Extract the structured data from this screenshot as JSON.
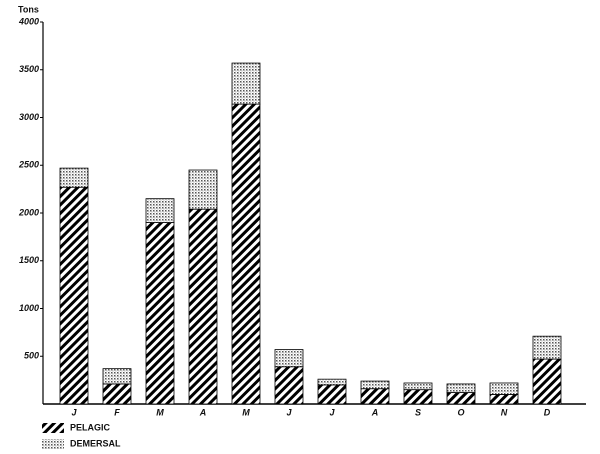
{
  "chart_data": {
    "type": "stacked_bar",
    "y_label": "Tons",
    "categories": [
      "J",
      "F",
      "M",
      "A",
      "M",
      "J",
      "J",
      "A",
      "S",
      "O",
      "N",
      "D"
    ],
    "series": [
      {
        "name": "PELAGIC",
        "color": "#000000",
        "values": [
          2270,
          210,
          1900,
          2040,
          3140,
          390,
          200,
          160,
          150,
          120,
          100,
          470
        ]
      },
      {
        "name": "DEMERSAL",
        "color": "#555555",
        "values": [
          200,
          160,
          250,
          410,
          430,
          180,
          60,
          80,
          70,
          90,
          120,
          240
        ]
      }
    ],
    "ylim": [
      0,
      4000
    ],
    "yticks": [
      500,
      1000,
      1500,
      2000,
      2500,
      3000,
      3500,
      4000
    ]
  }
}
